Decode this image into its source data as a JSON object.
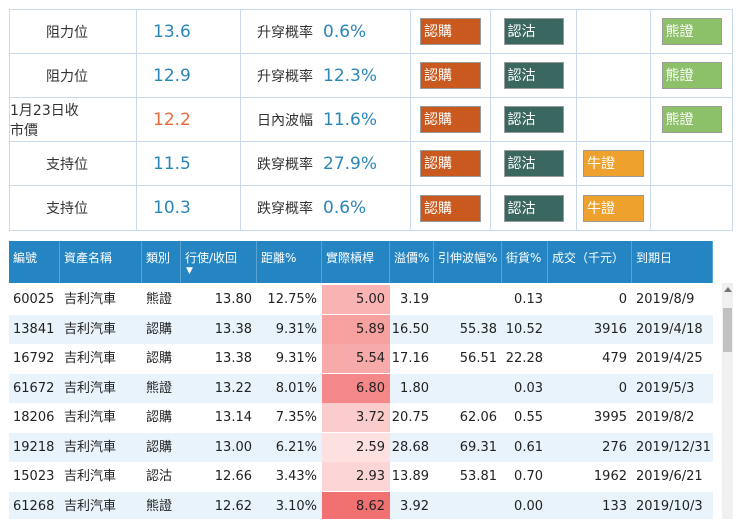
{
  "levels": [
    {
      "label": "阻力位",
      "price": "13.6",
      "metric_label": "升穿概率",
      "metric_value": "0.6%",
      "buttons": [
        "認購",
        "認沽",
        "",
        "熊證"
      ]
    },
    {
      "label": "阻力位",
      "price": "12.9",
      "metric_label": "升穿概率",
      "metric_value": "12.3%",
      "buttons": [
        "認購",
        "認沽",
        "",
        "熊證"
      ]
    },
    {
      "label": "1月23日收市價",
      "price": "12.2",
      "metric_label": "日內波幅",
      "metric_value": "11.6%",
      "buttons": [
        "認購",
        "認沽",
        "",
        "熊證"
      ]
    },
    {
      "label": "支持位",
      "price": "11.5",
      "metric_label": "跌穿概率",
      "metric_value": "27.9%",
      "buttons": [
        "認購",
        "認沽",
        "牛證",
        ""
      ]
    },
    {
      "label": "支持位",
      "price": "10.3",
      "metric_label": "跌穿概率",
      "metric_value": "0.6%",
      "buttons": [
        "認購",
        "認沽",
        "牛證",
        ""
      ]
    }
  ],
  "colors": {
    "call": "#c9591e",
    "put": "#3b6761",
    "bull": "#efa12e",
    "bear": "#8cc169",
    "header": "#2585c2",
    "price_blue": "#2b86b8",
    "price_red": "#ea6b3a"
  },
  "table": {
    "headers": [
      "編號",
      "資產名稱",
      "類別",
      "行使/收回",
      "距離%",
      "實際槓桿",
      "溢價%",
      "引伸波幅%",
      "街貨%",
      "成交（千元）",
      "到期日"
    ],
    "sort_indicator": "▼",
    "rows": [
      [
        "60025",
        "吉利汽車",
        "熊證",
        "13.80",
        "12.75%",
        "5.00",
        "3.19",
        "",
        "0.13",
        "0",
        "2019/8/9"
      ],
      [
        "13841",
        "吉利汽車",
        "認購",
        "13.38",
        "9.31%",
        "5.89",
        "16.50",
        "55.38",
        "10.52",
        "3916",
        "2019/4/18"
      ],
      [
        "16792",
        "吉利汽車",
        "認購",
        "13.38",
        "9.31%",
        "5.54",
        "17.16",
        "56.51",
        "22.28",
        "479",
        "2019/4/25"
      ],
      [
        "61672",
        "吉利汽車",
        "熊證",
        "13.22",
        "8.01%",
        "6.80",
        "1.80",
        "",
        "0.03",
        "0",
        "2019/5/3"
      ],
      [
        "18206",
        "吉利汽車",
        "認購",
        "13.14",
        "7.35%",
        "3.72",
        "20.75",
        "62.06",
        "0.55",
        "3995",
        "2019/8/2"
      ],
      [
        "19218",
        "吉利汽車",
        "認購",
        "13.00",
        "6.21%",
        "2.59",
        "28.68",
        "69.31",
        "0.61",
        "276",
        "2019/12/31"
      ],
      [
        "15023",
        "吉利汽車",
        "認沽",
        "12.66",
        "3.43%",
        "2.93",
        "13.89",
        "53.81",
        "0.70",
        "1962",
        "2019/6/21"
      ],
      [
        "61268",
        "吉利汽車",
        "熊證",
        "12.62",
        "3.10%",
        "8.62",
        "3.92",
        "",
        "0.00",
        "133",
        "2019/10/3"
      ]
    ],
    "leverage_colors": [
      "#f9b3b3",
      "#f6a0a0",
      "#f7aaaa",
      "#f48787",
      "#fbcccc",
      "#fde0e0",
      "#fcd6d6",
      "#f17070"
    ]
  }
}
